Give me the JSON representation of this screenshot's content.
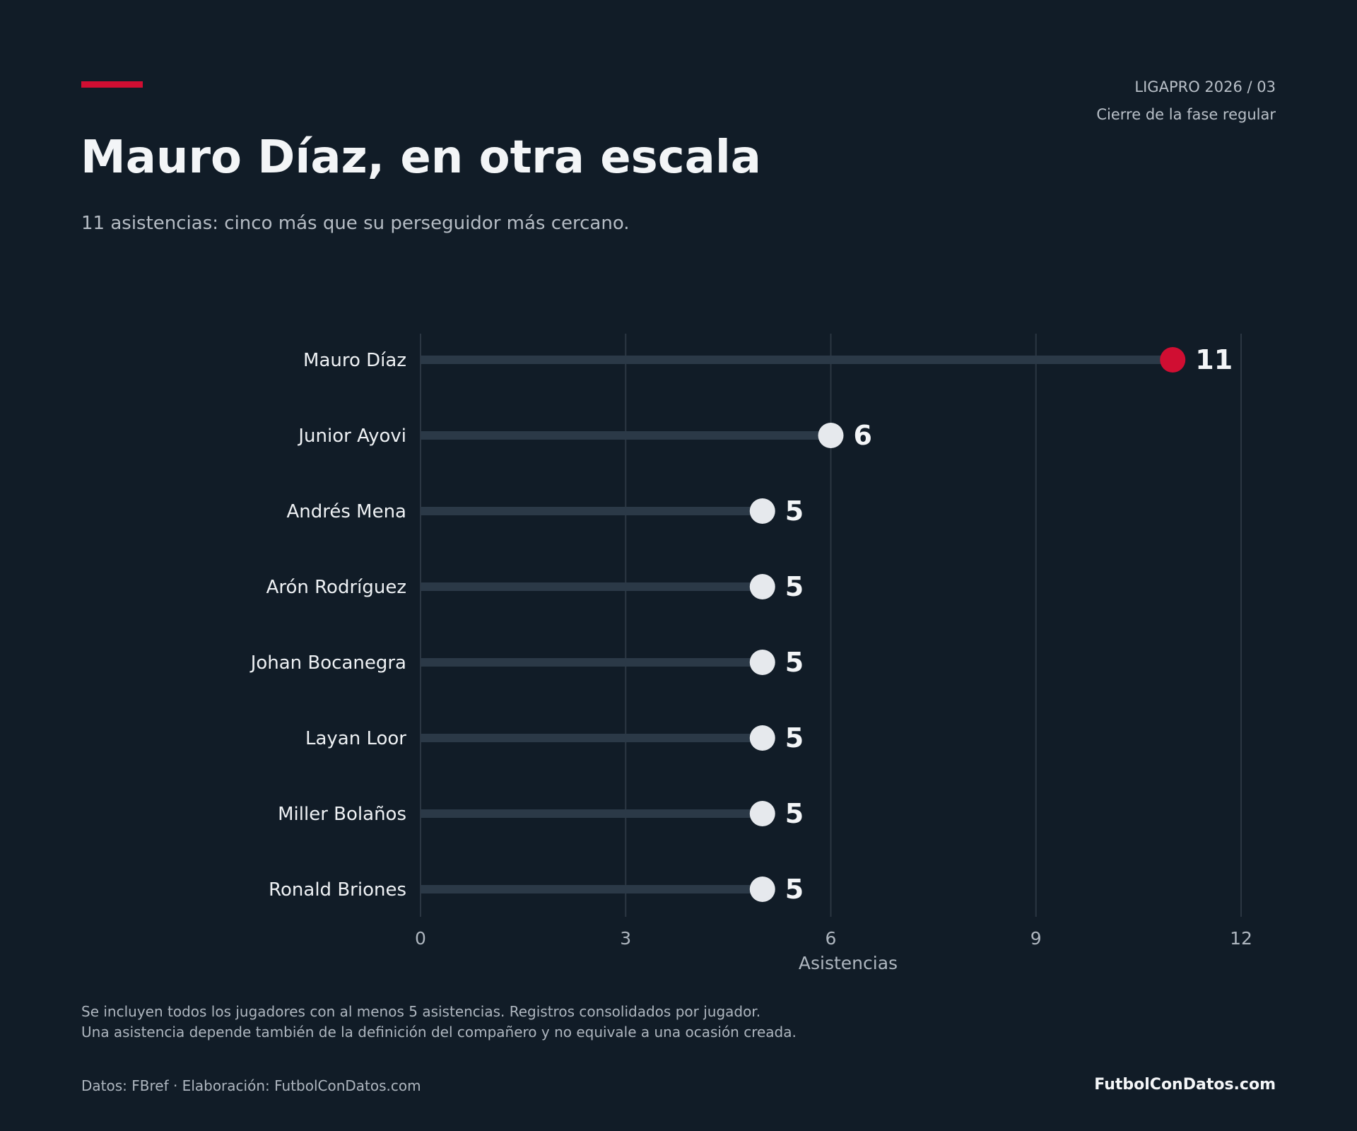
{
  "header": {
    "edition": "LIGAPRO 2026  /  03",
    "stage": "Cierre de la fase regular"
  },
  "title": "Mauro Díaz, en otra escala",
  "subtitle": "11 asistencias: cinco más que su perseguidor más cercano.",
  "footnotes": [
    "Se incluyen todos los jugadores con al menos 5 asistencias. Registros consolidados por jugador.",
    "Una asistencia depende también de la definición del compañero y no equivale a una ocasión creada."
  ],
  "source": "Datos: FBref · Elaboración: FutbolConDatos.com",
  "brand": "FutbolConDatos.com",
  "colors": {
    "background": "#111c27",
    "accent": "#d00e32",
    "highlight_point": "#d00e32",
    "point": "#e6e9ed",
    "stem": "#2b3947",
    "grid": "#2b3642"
  },
  "chart_data": {
    "type": "lollipop",
    "orientation": "horizontal",
    "categories": [
      "Mauro Díaz",
      "Junior Ayovi",
      "Andrés Mena",
      "Arón Rodríguez",
      "Johan Bocanegra",
      "Layan Loor",
      "Miller Bolaños",
      "Ronald Briones"
    ],
    "values": [
      11,
      6,
      5,
      5,
      5,
      5,
      5,
      5
    ],
    "highlight": "Mauro Díaz",
    "xlabel": "Asistencias",
    "xlim": [
      0,
      12
    ],
    "xticks": [
      0,
      3,
      6,
      9,
      12
    ],
    "grid": "vertical"
  }
}
